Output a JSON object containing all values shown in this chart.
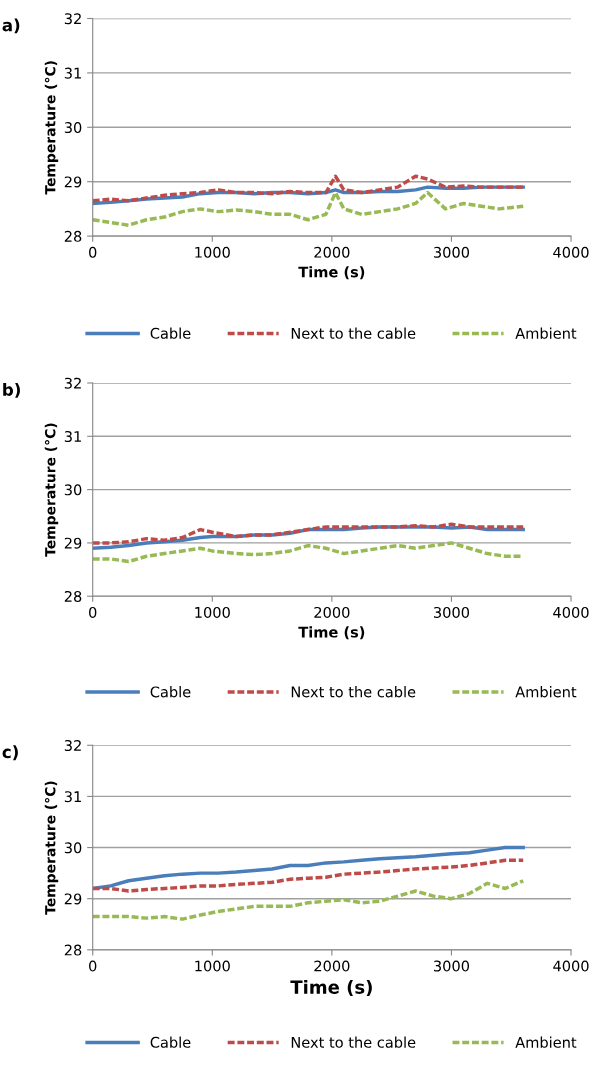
{
  "chart_data": [
    {
      "type": "line",
      "title": "a)",
      "xlabel": "Time (s)",
      "ylabel": "Temperature (°C)",
      "xlim": [
        0,
        4000
      ],
      "ylim": [
        28,
        32
      ],
      "xticks": [
        0,
        1000,
        2000,
        3000,
        4000
      ],
      "yticks": [
        28,
        29,
        30,
        31,
        32
      ],
      "grid": "y",
      "legend": "bottom",
      "marker": "none",
      "x": [
        0,
        150,
        300,
        450,
        600,
        750,
        900,
        1050,
        1200,
        1350,
        1500,
        1650,
        1800,
        1950,
        2030,
        2100,
        2250,
        2400,
        2550,
        2700,
        2800,
        2950,
        3100,
        3250,
        3400,
        3600
      ],
      "series": [
        {
          "name": "Cable",
          "color": "#4a7ebb",
          "line_style": "solid",
          "values": [
            28.6,
            28.62,
            28.65,
            28.68,
            28.7,
            28.72,
            28.78,
            28.8,
            28.8,
            28.78,
            28.8,
            28.8,
            28.78,
            28.8,
            28.85,
            28.8,
            28.8,
            28.82,
            28.82,
            28.85,
            28.9,
            28.88,
            28.88,
            28.9,
            28.9,
            28.9
          ]
        },
        {
          "name": "Next to the cable",
          "color": "#be4b48",
          "line_style": "dashed",
          "values": [
            28.65,
            28.68,
            28.65,
            28.7,
            28.75,
            28.78,
            28.8,
            28.85,
            28.8,
            28.8,
            28.78,
            28.82,
            28.8,
            28.8,
            29.1,
            28.85,
            28.8,
            28.85,
            28.9,
            29.1,
            29.05,
            28.9,
            28.92,
            28.9,
            28.9,
            28.9
          ]
        },
        {
          "name": "Ambient",
          "color": "#98b954",
          "line_style": "dashed",
          "values": [
            28.3,
            28.25,
            28.2,
            28.3,
            28.35,
            28.45,
            28.5,
            28.45,
            28.48,
            28.45,
            28.4,
            28.4,
            28.3,
            28.4,
            28.8,
            28.5,
            28.4,
            28.45,
            28.5,
            28.6,
            28.8,
            28.5,
            28.6,
            28.55,
            28.5,
            28.55
          ]
        }
      ]
    },
    {
      "type": "line",
      "title": "b)",
      "xlabel": "Time (s)",
      "ylabel": "Temperature (°C)",
      "xlim": [
        0,
        4000
      ],
      "ylim": [
        28,
        32
      ],
      "xticks": [
        0,
        1000,
        2000,
        3000,
        4000
      ],
      "yticks": [
        28,
        29,
        30,
        31,
        32
      ],
      "grid": "y",
      "legend": "bottom",
      "marker": "none",
      "x": [
        0,
        150,
        300,
        450,
        600,
        750,
        900,
        1000,
        1200,
        1350,
        1500,
        1650,
        1800,
        1950,
        2100,
        2250,
        2400,
        2550,
        2700,
        2850,
        3000,
        3150,
        3300,
        3450,
        3600
      ],
      "series": [
        {
          "name": "Cable",
          "color": "#4a7ebb",
          "line_style": "solid",
          "values": [
            28.9,
            28.92,
            28.95,
            29.0,
            29.02,
            29.05,
            29.1,
            29.12,
            29.12,
            29.15,
            29.15,
            29.18,
            29.25,
            29.25,
            29.25,
            29.28,
            29.3,
            29.3,
            29.3,
            29.3,
            29.28,
            29.3,
            29.25,
            29.25,
            29.25
          ]
        },
        {
          "name": "Next to the cable",
          "color": "#be4b48",
          "line_style": "dashed",
          "values": [
            29.0,
            29.0,
            29.02,
            29.08,
            29.05,
            29.1,
            29.25,
            29.2,
            29.12,
            29.15,
            29.15,
            29.2,
            29.25,
            29.3,
            29.3,
            29.3,
            29.3,
            29.3,
            29.32,
            29.3,
            29.35,
            29.3,
            29.3,
            29.3,
            29.3
          ]
        },
        {
          "name": "Ambient",
          "color": "#98b954",
          "line_style": "dashed",
          "values": [
            28.7,
            28.7,
            28.65,
            28.75,
            28.8,
            28.85,
            28.9,
            28.85,
            28.8,
            28.78,
            28.8,
            28.85,
            28.95,
            28.9,
            28.8,
            28.85,
            28.9,
            28.95,
            28.9,
            28.95,
            29.0,
            28.9,
            28.8,
            28.75,
            28.75
          ]
        }
      ]
    },
    {
      "type": "line",
      "title": "c)",
      "xlabel": "Time (s)",
      "ylabel": "Temperature (°C)",
      "xlim": [
        0,
        4000
      ],
      "ylim": [
        28,
        32
      ],
      "xticks": [
        0,
        1000,
        2000,
        3000,
        4000
      ],
      "yticks": [
        28,
        29,
        30,
        31,
        32
      ],
      "grid": "y",
      "legend": "bottom",
      "marker": "none",
      "x": [
        0,
        150,
        300,
        450,
        600,
        750,
        900,
        1050,
        1200,
        1350,
        1500,
        1650,
        1800,
        1950,
        2100,
        2250,
        2400,
        2550,
        2700,
        2850,
        3000,
        3150,
        3300,
        3450,
        3600
      ],
      "series": [
        {
          "name": "Cable",
          "color": "#4a7ebb",
          "line_style": "solid",
          "values": [
            29.2,
            29.25,
            29.35,
            29.4,
            29.45,
            29.48,
            29.5,
            29.5,
            29.52,
            29.55,
            29.58,
            29.65,
            29.65,
            29.7,
            29.72,
            29.75,
            29.78,
            29.8,
            29.82,
            29.85,
            29.88,
            29.9,
            29.95,
            30.0,
            30.0
          ]
        },
        {
          "name": "Next to the cable",
          "color": "#be4b48",
          "line_style": "dashed",
          "values": [
            29.2,
            29.2,
            29.15,
            29.18,
            29.2,
            29.22,
            29.25,
            29.25,
            29.28,
            29.3,
            29.32,
            29.38,
            29.4,
            29.42,
            29.48,
            29.5,
            29.52,
            29.55,
            29.58,
            29.6,
            29.62,
            29.65,
            29.7,
            29.75,
            29.75
          ]
        },
        {
          "name": "Ambient",
          "color": "#98b954",
          "line_style": "dashed",
          "values": [
            28.65,
            28.65,
            28.65,
            28.62,
            28.65,
            28.6,
            28.68,
            28.75,
            28.8,
            28.85,
            28.85,
            28.85,
            28.92,
            28.95,
            28.98,
            28.92,
            28.95,
            29.05,
            29.15,
            29.05,
            29.0,
            29.1,
            29.3,
            29.2,
            29.35
          ]
        }
      ]
    }
  ]
}
